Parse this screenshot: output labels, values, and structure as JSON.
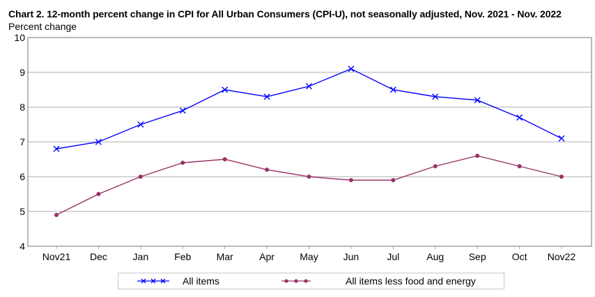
{
  "chart_data": {
    "type": "line",
    "title": "Chart 2. 12-month percent change in CPI for All Urban Consumers (CPI-U), not seasonally adjusted, Nov. 2021 - Nov. 2022",
    "ylabel": "Percent change",
    "xlabel": "",
    "categories": [
      "Nov21",
      "Dec",
      "Jan",
      "Feb",
      "Mar",
      "Apr",
      "May",
      "Jun",
      "Jul",
      "Aug",
      "Sep",
      "Oct",
      "Nov22"
    ],
    "ylim": [
      4,
      10
    ],
    "yticks": [
      4,
      5,
      6,
      7,
      8,
      9,
      10
    ],
    "grid": true,
    "legend_position": "bottom",
    "series": [
      {
        "name": "All items",
        "color": "#0000ff",
        "marker": "x",
        "values": [
          6.8,
          7.0,
          7.5,
          7.9,
          8.5,
          8.3,
          8.6,
          9.1,
          8.5,
          8.3,
          8.2,
          7.7,
          7.1
        ]
      },
      {
        "name": "All items less food and energy",
        "color": "#993366",
        "marker": "circle",
        "values": [
          4.9,
          5.5,
          6.0,
          6.4,
          6.5,
          6.2,
          6.0,
          5.9,
          5.9,
          6.3,
          6.6,
          6.3,
          6.0
        ]
      }
    ]
  }
}
